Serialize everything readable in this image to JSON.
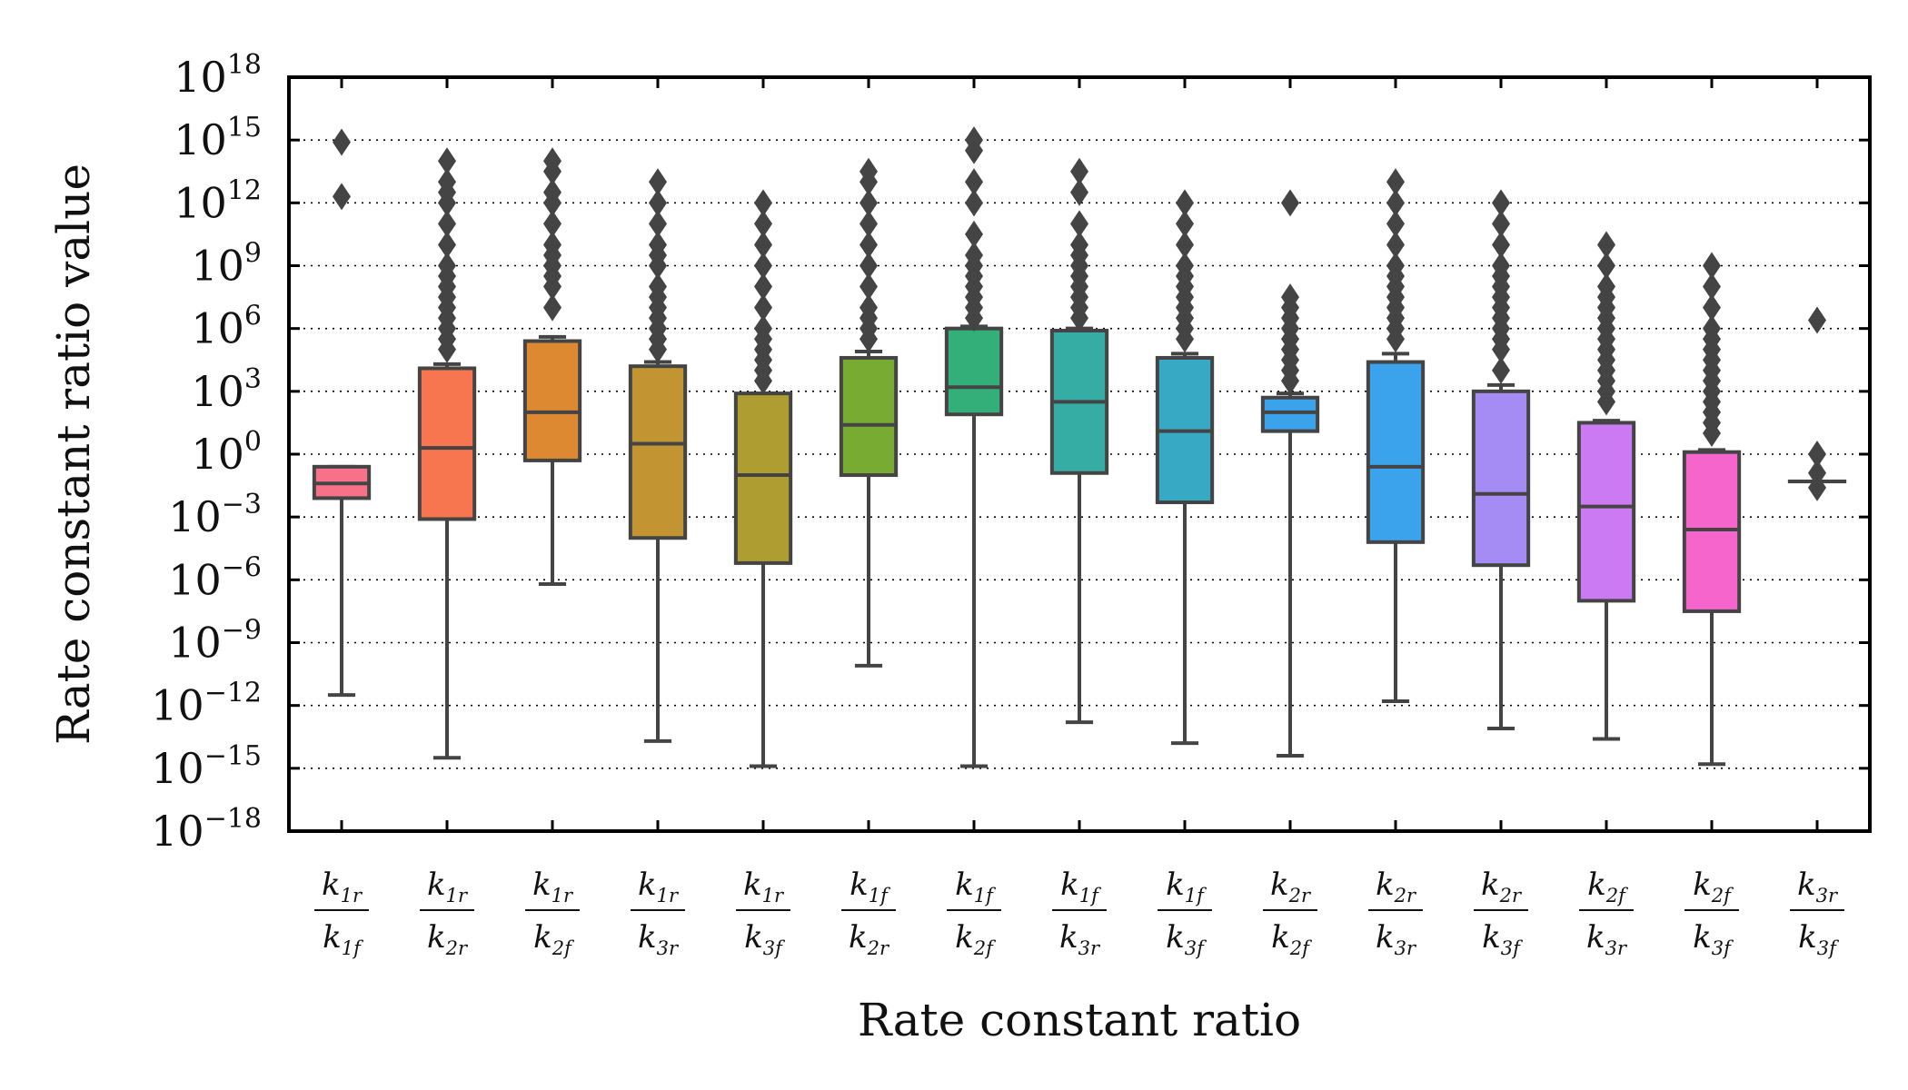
{
  "chart_data": {
    "type": "box",
    "xlabel": "Rate constant ratio",
    "ylabel": "Rate constant ratio value",
    "yscale": "log",
    "ylim_log10": [
      -18,
      18
    ],
    "yticks_log10": [
      -18,
      -15,
      -12,
      -9,
      -6,
      -3,
      0,
      3,
      6,
      9,
      12,
      15,
      18
    ],
    "tick_base": "10",
    "grid": "y-dotted",
    "categories": [
      {
        "num": "k",
        "num_sub": "1r",
        "den": "k",
        "den_sub": "1f"
      },
      {
        "num": "k",
        "num_sub": "1r",
        "den": "k",
        "den_sub": "2r"
      },
      {
        "num": "k",
        "num_sub": "1r",
        "den": "k",
        "den_sub": "2f"
      },
      {
        "num": "k",
        "num_sub": "1r",
        "den": "k",
        "den_sub": "3r"
      },
      {
        "num": "k",
        "num_sub": "1r",
        "den": "k",
        "den_sub": "3f"
      },
      {
        "num": "k",
        "num_sub": "1f",
        "den": "k",
        "den_sub": "2r"
      },
      {
        "num": "k",
        "num_sub": "1f",
        "den": "k",
        "den_sub": "2f"
      },
      {
        "num": "k",
        "num_sub": "1f",
        "den": "k",
        "den_sub": "3r"
      },
      {
        "num": "k",
        "num_sub": "1f",
        "den": "k",
        "den_sub": "3f"
      },
      {
        "num": "k",
        "num_sub": "2r",
        "den": "k",
        "den_sub": "2f"
      },
      {
        "num": "k",
        "num_sub": "2r",
        "den": "k",
        "den_sub": "3r"
      },
      {
        "num": "k",
        "num_sub": "2r",
        "den": "k",
        "den_sub": "3f"
      },
      {
        "num": "k",
        "num_sub": "2f",
        "den": "k",
        "den_sub": "3r"
      },
      {
        "num": "k",
        "num_sub": "2f",
        "den": "k",
        "den_sub": "3f"
      },
      {
        "num": "k",
        "num_sub": "3r",
        "den": "k",
        "den_sub": "3f"
      }
    ],
    "boxes_log10": [
      {
        "color": "#f77189",
        "whislo": -11.5,
        "q1": -2.1,
        "median": -1.4,
        "q3": -0.6,
        "whishi": -0.6,
        "fliers": [
          14.9,
          12.3
        ]
      },
      {
        "color": "#f7754f",
        "whislo": -14.5,
        "q1": -3.1,
        "median": 0.3,
        "q3": 4.1,
        "whishi": 4.3,
        "fliers": [
          5.0,
          5.5,
          6.0,
          6.5,
          7.0,
          7.5,
          8.0,
          8.5,
          9.0,
          10.0,
          11.0,
          12.0,
          12.5,
          13.0,
          14.0
        ]
      },
      {
        "color": "#dc8932",
        "whislo": -6.2,
        "q1": -0.3,
        "median": 2.0,
        "q3": 5.4,
        "whishi": 5.6,
        "fliers": [
          7.0,
          8.0,
          8.5,
          9.0,
          9.5,
          10.0,
          11.0,
          12.0,
          12.5,
          13.5,
          14.0
        ]
      },
      {
        "color": "#c39532",
        "whislo": -13.7,
        "q1": -4.0,
        "median": 0.5,
        "q3": 4.2,
        "whishi": 4.4,
        "fliers": [
          5.0,
          5.5,
          6.0,
          6.5,
          7.0,
          7.5,
          8.0,
          9.0,
          9.5,
          10.0,
          11.0,
          12.0,
          13.0
        ]
      },
      {
        "color": "#ae9d31",
        "whislo": -14.9,
        "q1": -5.2,
        "median": -1.0,
        "q3": 2.9,
        "whishi": 2.9,
        "fliers": [
          3.5,
          4.0,
          4.5,
          5.0,
          5.5,
          6.0,
          7.0,
          8.0,
          9.0,
          10.0,
          11.0,
          12.0
        ]
      },
      {
        "color": "#77ab31",
        "whislo": -10.1,
        "q1": -1.0,
        "median": 1.4,
        "q3": 4.6,
        "whishi": 4.9,
        "fliers": [
          5.5,
          6.0,
          6.5,
          7.0,
          8.0,
          9.0,
          10.0,
          11.0,
          12.0,
          13.0,
          13.5
        ]
      },
      {
        "color": "#33b07a",
        "whislo": -14.9,
        "q1": 1.9,
        "median": 3.2,
        "q3": 6.0,
        "whishi": 6.1,
        "fliers": [
          6.5,
          7.0,
          7.5,
          8.0,
          8.5,
          9.0,
          9.5,
          10.5,
          12.0,
          13.0,
          14.5,
          15.0
        ]
      },
      {
        "color": "#36ada4",
        "whislo": -12.8,
        "q1": -0.9,
        "median": 2.5,
        "q3": 5.9,
        "whishi": 6.0,
        "fliers": [
          6.5,
          7.0,
          7.5,
          8.0,
          8.5,
          9.0,
          9.5,
          10.0,
          11.0,
          12.5,
          13.5
        ]
      },
      {
        "color": "#38a9c5",
        "whislo": -13.8,
        "q1": -2.3,
        "median": 1.1,
        "q3": 4.6,
        "whishi": 4.8,
        "fliers": [
          5.5,
          6.0,
          6.5,
          7.0,
          7.5,
          8.0,
          8.5,
          9.0,
          10.0,
          11.0,
          12.0
        ]
      },
      {
        "color": "#3ba3ec",
        "whislo": -14.4,
        "q1": 1.1,
        "median": 2.0,
        "q3": 2.7,
        "whishi": 2.9,
        "fliers": [
          3.5,
          4.0,
          4.5,
          5.0,
          5.5,
          6.0,
          6.5,
          7.0,
          7.5,
          12.0
        ]
      },
      {
        "color": "#3ba3ec",
        "whislo": -11.8,
        "q1": -4.2,
        "median": -0.6,
        "q3": 4.4,
        "whishi": 4.8,
        "fliers": [
          5.5,
          6.0,
          6.5,
          7.0,
          7.5,
          8.0,
          8.5,
          9.0,
          10.0,
          11.0,
          12.0,
          13.0
        ]
      },
      {
        "color": "#a48cf4",
        "whislo": -13.1,
        "q1": -5.3,
        "median": -1.9,
        "q3": 3.0,
        "whishi": 3.3,
        "fliers": [
          4.0,
          5.0,
          5.5,
          6.0,
          6.5,
          7.0,
          7.5,
          8.0,
          8.5,
          9.0,
          10.0,
          11.0,
          12.0
        ]
      },
      {
        "color": "#cc7af4",
        "whislo": -13.6,
        "q1": -7.0,
        "median": -2.5,
        "q3": 1.5,
        "whishi": 1.6,
        "fliers": [
          2.5,
          3.0,
          3.5,
          4.0,
          4.5,
          5.0,
          5.5,
          6.0,
          6.5,
          7.0,
          7.5,
          8.0,
          9.0,
          10.0
        ]
      },
      {
        "color": "#f565cc",
        "whislo": -14.8,
        "q1": -7.5,
        "median": -3.6,
        "q3": 0.1,
        "whishi": 0.2,
        "fliers": [
          1.0,
          1.5,
          2.0,
          2.5,
          3.0,
          3.5,
          4.0,
          4.5,
          5.0,
          5.5,
          6.0,
          7.0,
          8.0,
          9.0
        ]
      },
      {
        "color": "#f565cc",
        "whislo": -1.3,
        "q1": -1.3,
        "median": -1.3,
        "q3": -1.3,
        "whishi": -1.3,
        "fliers": [
          6.4,
          -0.0,
          -0.9,
          -1.6
        ]
      }
    ]
  }
}
